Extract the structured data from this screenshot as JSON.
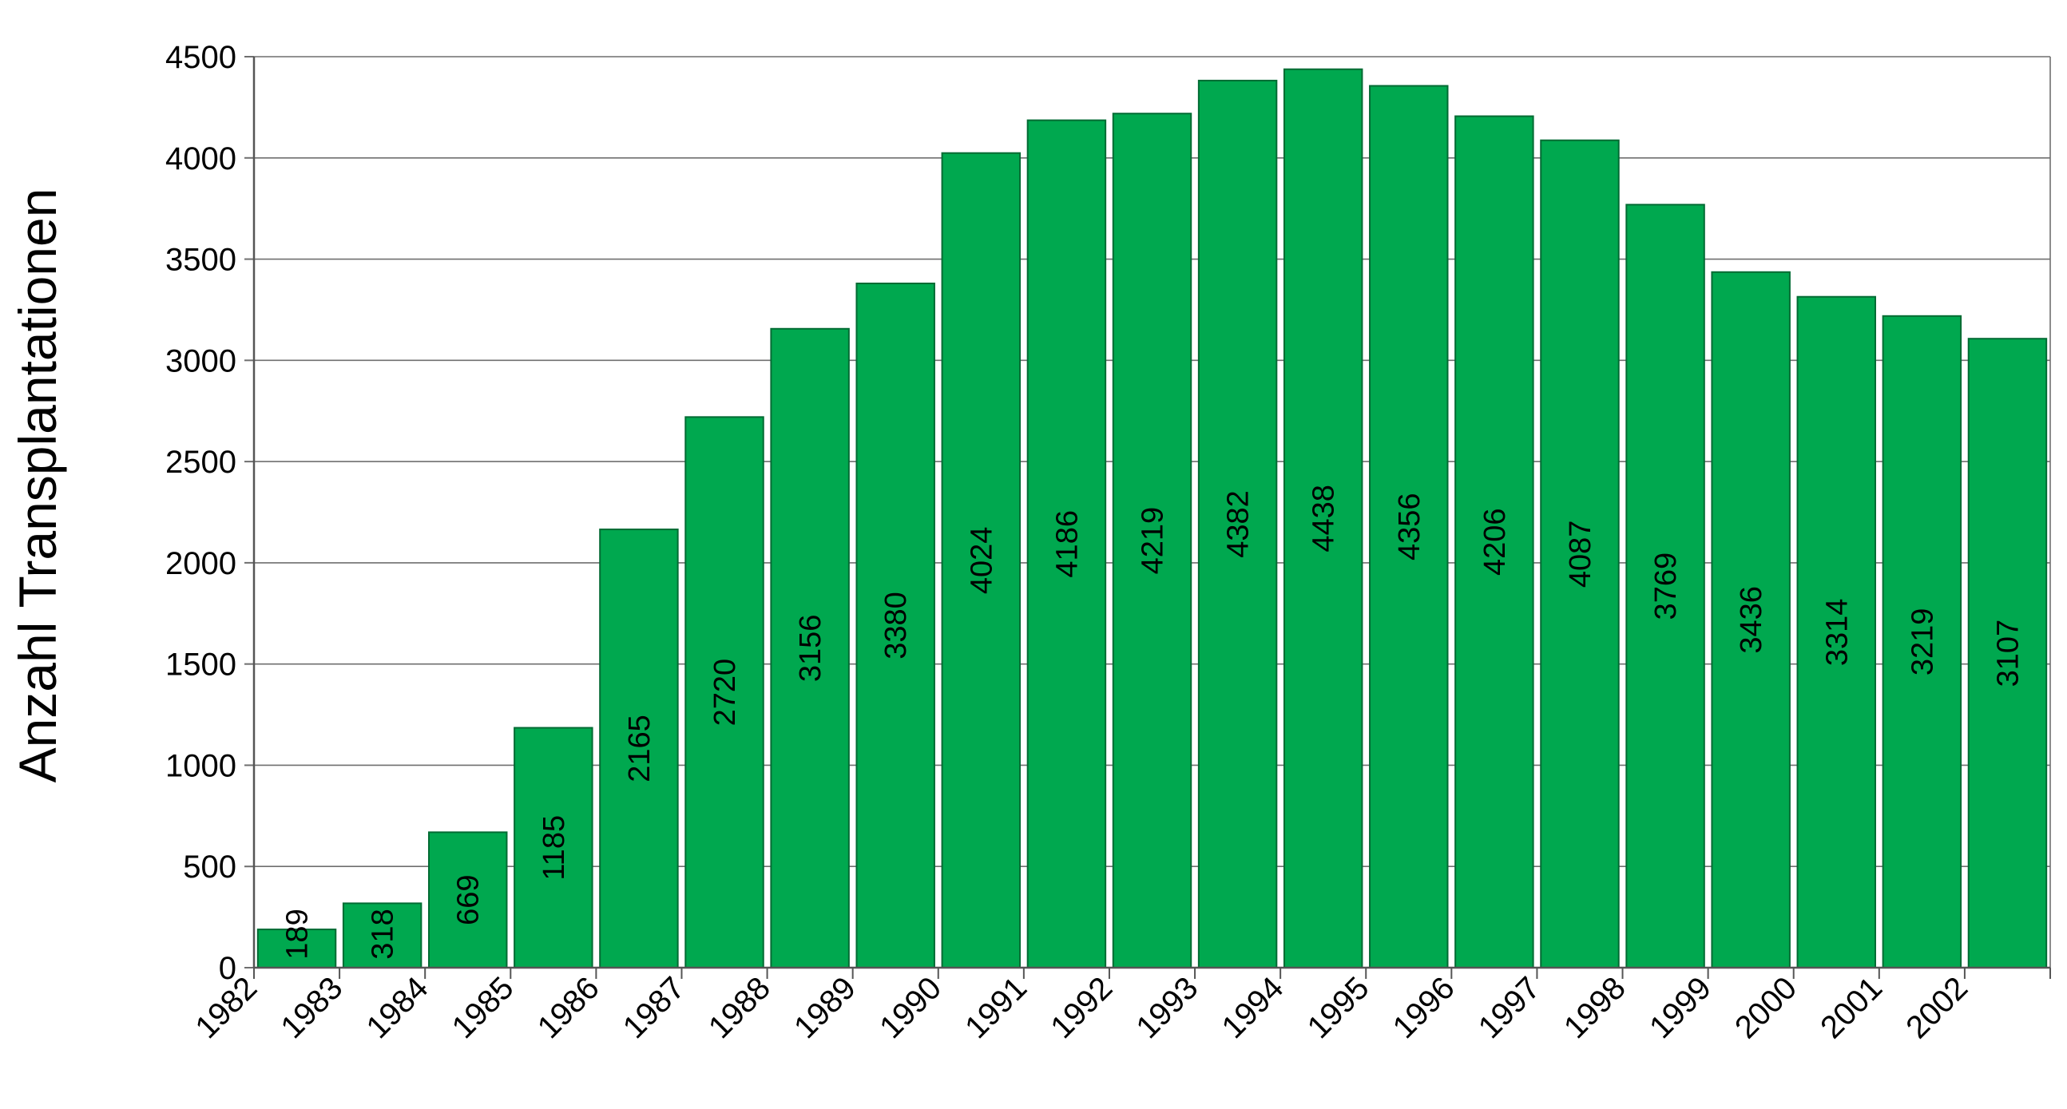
{
  "chart_data": {
    "type": "bar",
    "title": "",
    "xlabel": "",
    "ylabel": "Anzahl Transplantationen",
    "ylim": [
      0,
      4500
    ],
    "yticks": [
      "0",
      "500",
      "1000",
      "1500",
      "2000",
      "2500",
      "3000",
      "3500",
      "4000",
      "4500"
    ],
    "grid": "horizontal",
    "legend": "none",
    "bar_color": "#00A84F",
    "categories": [
      "1982",
      "1983",
      "1984",
      "1985",
      "1986",
      "1987",
      "1988",
      "1989",
      "1990",
      "1991",
      "1992",
      "1993",
      "1994",
      "1995",
      "1996",
      "1997",
      "1998",
      "1999",
      "2000",
      "2001",
      "2002"
    ],
    "values": [
      189,
      318,
      669,
      1185,
      2165,
      2720,
      3156,
      3380,
      4024,
      4186,
      4219,
      4382,
      4438,
      4356,
      4206,
      4087,
      3769,
      3436,
      3314,
      3219,
      3107
    ],
    "data_labels": [
      "189",
      "318",
      "669",
      "1185",
      "2165",
      "2720",
      "3156",
      "3380",
      "4024",
      "4186",
      "4219",
      "4382",
      "4438",
      "4356",
      "4206",
      "4087",
      "3769",
      "3436",
      "3314",
      "3219",
      "3107"
    ]
  }
}
